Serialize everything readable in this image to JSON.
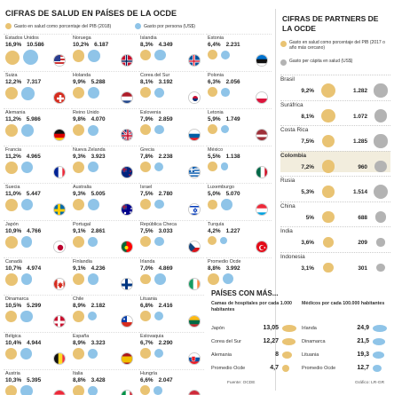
{
  "left_title": "CIFRAS DE SALUD EN PAÍSES DE LA OCDE",
  "left_legend": {
    "gold": "Gasto en salud como porcentaje del PIB (2018)",
    "blue": "Gasto por persona (US$)"
  },
  "countries": [
    {
      "name": "Estados Unidos",
      "pct": "16,9%",
      "usd": "10.586",
      "p": 16.9,
      "u": 10586,
      "flag": "us"
    },
    {
      "name": "Noruega",
      "pct": "10,2%",
      "usd": "6.187",
      "p": 10.2,
      "u": 6187,
      "flag": "no"
    },
    {
      "name": "Islandia",
      "pct": "8,3%",
      "usd": "4.349",
      "p": 8.3,
      "u": 4349,
      "flag": "is"
    },
    {
      "name": "Estonia",
      "pct": "6,4%",
      "usd": "2.231",
      "p": 6.4,
      "u": 2231,
      "flag": "ee"
    },
    {
      "name": "Suiza",
      "pct": "12,2%",
      "usd": "7.317",
      "p": 12.2,
      "u": 7317,
      "flag": "ch"
    },
    {
      "name": "Holanda",
      "pct": "9,9%",
      "usd": "5.288",
      "p": 9.9,
      "u": 5288,
      "flag": "nl"
    },
    {
      "name": "Corea del Sur",
      "pct": "8,1%",
      "usd": "3.192",
      "p": 8.1,
      "u": 3192,
      "flag": "kr"
    },
    {
      "name": "Polonia",
      "pct": "6,3%",
      "usd": "2.056",
      "p": 6.3,
      "u": 2056,
      "flag": "pl"
    },
    {
      "name": "Alemania",
      "pct": "11,2%",
      "usd": "5.986",
      "p": 11.2,
      "u": 5986,
      "flag": "de"
    },
    {
      "name": "Reino Unido",
      "pct": "9,8%",
      "usd": "4.070",
      "p": 9.8,
      "u": 4070,
      "flag": "uk"
    },
    {
      "name": "Eslovenia",
      "pct": "7,9%",
      "usd": "2.859",
      "p": 7.9,
      "u": 2859,
      "flag": "si"
    },
    {
      "name": "Letonia",
      "pct": "5,9%",
      "usd": "1.749",
      "p": 5.9,
      "u": 1749,
      "flag": "lv"
    },
    {
      "name": "Francia",
      "pct": "11,2%",
      "usd": "4.965",
      "p": 11.2,
      "u": 4965,
      "flag": "fr"
    },
    {
      "name": "Nueva Zelanda",
      "pct": "9,3%",
      "usd": "3.923",
      "p": 9.3,
      "u": 3923,
      "flag": "nz"
    },
    {
      "name": "Grecia",
      "pct": "7,8%",
      "usd": "2.238",
      "p": 7.8,
      "u": 2238,
      "flag": "gr"
    },
    {
      "name": "México",
      "pct": "5,5%",
      "usd": "1.138",
      "p": 5.5,
      "u": 1138,
      "flag": "mx"
    },
    {
      "name": "Suecia",
      "pct": "11,0%",
      "usd": "5.447",
      "p": 11.0,
      "u": 5447,
      "flag": "se"
    },
    {
      "name": "Australia",
      "pct": "9,3%",
      "usd": "5.005",
      "p": 9.3,
      "u": 5005,
      "flag": "au"
    },
    {
      "name": "Israel",
      "pct": "7,5%",
      "usd": "2.780",
      "p": 7.5,
      "u": 2780,
      "flag": "il"
    },
    {
      "name": "Luxemburgo",
      "pct": "5,0%",
      "usd": "5.070",
      "p": 5.0,
      "u": 5070,
      "flag": "lu"
    },
    {
      "name": "Japón",
      "pct": "10,9%",
      "usd": "4.766",
      "p": 10.9,
      "u": 4766,
      "flag": "jp"
    },
    {
      "name": "Portugal",
      "pct": "9,1%",
      "usd": "2.861",
      "p": 9.1,
      "u": 2861,
      "flag": "pt"
    },
    {
      "name": "República Checa",
      "pct": "7,5%",
      "usd": "3.033",
      "p": 7.5,
      "u": 3033,
      "flag": "cz"
    },
    {
      "name": "Turquía",
      "pct": "4,2%",
      "usd": "1.227",
      "p": 4.2,
      "u": 1227,
      "flag": "tr"
    },
    {
      "name": "Canadá",
      "pct": "10,7%",
      "usd": "4.974",
      "p": 10.7,
      "u": 4974,
      "flag": "ca"
    },
    {
      "name": "Finlandia",
      "pct": "9,1%",
      "usd": "4.236",
      "p": 9.1,
      "u": 4236,
      "flag": "fi"
    },
    {
      "name": "Irlanda",
      "pct": "7,0%",
      "usd": "4.869",
      "p": 7.0,
      "u": 4869,
      "flag": "ie"
    },
    {
      "name": "Promedio Ocde",
      "pct": "8,8%",
      "usd": "3.992",
      "p": 8.8,
      "u": 3992,
      "flag": "none"
    },
    {
      "name": "Dinamarca",
      "pct": "10,5%",
      "usd": "5.299",
      "p": 10.5,
      "u": 5299,
      "flag": "dk"
    },
    {
      "name": "Chile",
      "pct": "8,9%",
      "usd": "2.182",
      "p": 8.9,
      "u": 2182,
      "flag": "cl"
    },
    {
      "name": "Lituania",
      "pct": "6,8%",
      "usd": "2.416",
      "p": 6.8,
      "u": 2416,
      "flag": "lt"
    },
    {
      "name": "",
      "pct": "",
      "usd": "",
      "p": 0,
      "u": 0,
      "flag": "empty"
    },
    {
      "name": "Bélgica",
      "pct": "10,4%",
      "usd": "4.944",
      "p": 10.4,
      "u": 4944,
      "flag": "be"
    },
    {
      "name": "España",
      "pct": "8,9%",
      "usd": "3.323",
      "p": 8.9,
      "u": 3323,
      "flag": "es"
    },
    {
      "name": "Eslovaquia",
      "pct": "6,7%",
      "usd": "2.290",
      "p": 6.7,
      "u": 2290,
      "flag": "sk"
    },
    {
      "name": "",
      "pct": "",
      "usd": "",
      "p": 0,
      "u": 0,
      "flag": "empty"
    },
    {
      "name": "Austria",
      "pct": "10,3%",
      "usd": "5.395",
      "p": 10.3,
      "u": 5395,
      "flag": "at"
    },
    {
      "name": "Italia",
      "pct": "8,8%",
      "usd": "3.428",
      "p": 8.8,
      "u": 3428,
      "flag": "it"
    },
    {
      "name": "Hungría",
      "pct": "6,6%",
      "usd": "2.047",
      "p": 6.6,
      "u": 2047,
      "flag": "hu"
    },
    {
      "name": "",
      "pct": "",
      "usd": "",
      "p": 0,
      "u": 0,
      "flag": "empty"
    }
  ],
  "right_title": "CIFRAS DE PARTNERS DE LA OCDE",
  "right_legend": {
    "gold": "Gasto en salud como porcentaje del PIB (2017 o año más cercano)",
    "grey": "Gasto per cápita en salud (US$)"
  },
  "partners": [
    {
      "name": "Brasil",
      "pct": "9,2%",
      "usd": "1.282",
      "p": 9.2,
      "u": 1282
    },
    {
      "name": "Suráfrica",
      "pct": "8,1%",
      "usd": "1.072",
      "p": 8.1,
      "u": 1072
    },
    {
      "name": "Costa Rica",
      "pct": "7,5%",
      "usd": "1.285",
      "p": 7.5,
      "u": 1285
    },
    {
      "name": "Colombia",
      "pct": "7,2%",
      "usd": "960",
      "p": 7.2,
      "u": 960,
      "highlight": true
    },
    {
      "name": "Rusia",
      "pct": "5,3%",
      "usd": "1.514",
      "p": 5.3,
      "u": 1514
    },
    {
      "name": "China",
      "pct": "5%",
      "usd": "688",
      "p": 5.0,
      "u": 688
    },
    {
      "name": "India",
      "pct": "3,6%",
      "usd": "209",
      "p": 3.6,
      "u": 209
    },
    {
      "name": "Indonesia",
      "pct": "3,1%",
      "usd": "301",
      "p": 3.1,
      "u": 301
    }
  ],
  "paises_title": "PAÍSES CON MÁS...",
  "camas": {
    "heading": "Camas de hospitales por cada 1.000 habitantes",
    "rows": [
      {
        "name": "Japón",
        "val": "13,05",
        "v": 13.05,
        "flag": "jp"
      },
      {
        "name": "Corea del Sur",
        "val": "12,27",
        "v": 12.27,
        "flag": "kr"
      },
      {
        "name": "Alemania",
        "val": "8",
        "v": 8,
        "flag": "de"
      },
      {
        "name": "Promedio Ocde",
        "val": "4,7",
        "v": 4.7,
        "flag": "none"
      }
    ]
  },
  "medicos": {
    "heading": "Médicos por cada 100.000 habitantes",
    "rows": [
      {
        "name": "Irlanda",
        "val": "24,9",
        "v": 24.9,
        "flag": "ie"
      },
      {
        "name": "Dinamarca",
        "val": "21,5",
        "v": 21.5,
        "flag": "dk"
      },
      {
        "name": "Lituania",
        "val": "19,3",
        "v": 19.3,
        "flag": "lt"
      },
      {
        "name": "Promedio Ocde",
        "val": "12,7",
        "v": 12.7,
        "flag": "none"
      }
    ]
  },
  "footer_source": "Fuente: OCDE",
  "footer_credit": "Gráfico: LR-GR",
  "colors": {
    "gold": "#e9c373",
    "blue": "#8fc4e8",
    "grey": "#b3b3b3",
    "highlight": "#f2eddd"
  }
}
